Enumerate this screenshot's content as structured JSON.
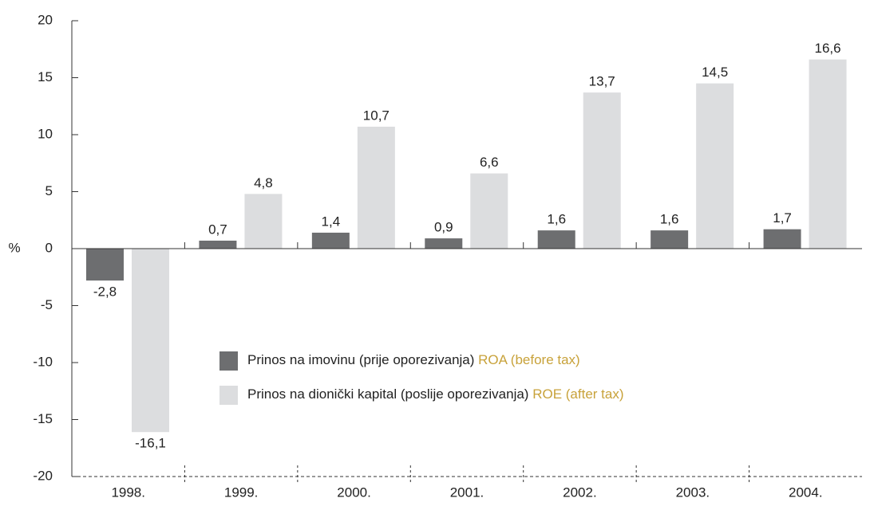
{
  "chart_data": {
    "type": "bar",
    "categories": [
      "1998.",
      "1999.",
      "2000.",
      "2001.",
      "2002.",
      "2003.",
      "2004."
    ],
    "y_label": "%",
    "ylim": [
      -20,
      20
    ],
    "yticks": [
      -20,
      -15,
      -10,
      -5,
      0,
      5,
      10,
      15,
      20
    ],
    "series": [
      {
        "name": "Prinos na imovinu (prije oporezivanja)",
        "name_en": "ROA (before tax)",
        "color": "#6d6e70",
        "values": [
          -2.8,
          0.7,
          1.4,
          0.9,
          1.6,
          1.6,
          1.7
        ],
        "value_labels": [
          "-2,8",
          "0,7",
          "1,4",
          "0,9",
          "1,6",
          "1,6",
          "1,7"
        ]
      },
      {
        "name": "Prinos na dionički kapital (poslije oporezivanja)",
        "name_en": "ROE (after tax)",
        "color": "#dcdddf",
        "values": [
          -16.1,
          4.8,
          10.7,
          6.6,
          13.7,
          14.5,
          16.6
        ],
        "value_labels": [
          "-16,1",
          "4,8",
          "10,7",
          "6,6",
          "13,7",
          "14,5",
          "16,6"
        ]
      }
    ],
    "legend_name_en_color": "#c8a23a"
  }
}
